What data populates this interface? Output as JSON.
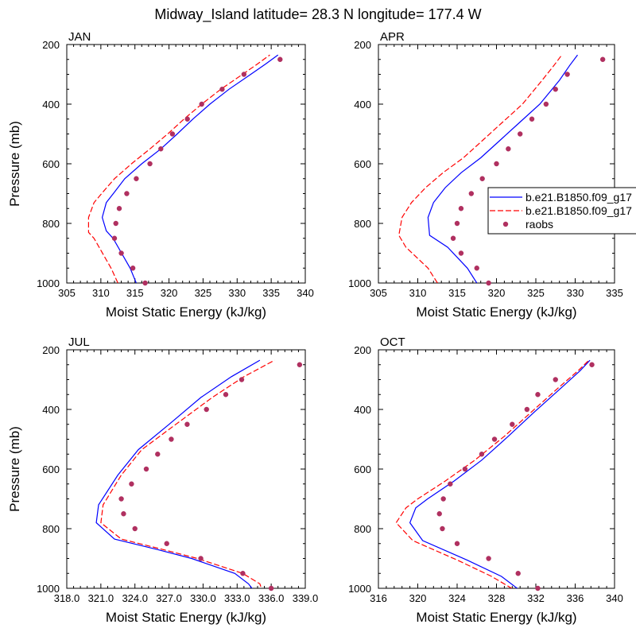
{
  "figure": {
    "title": "Midway_Island  latitude= 28.3 N longitude= 177.4 W"
  },
  "legend": {
    "placement": "right of APR panel",
    "entries": [
      {
        "label": "b.e21.B1850.f09_g17",
        "style": "solid",
        "color": "#0000ff"
      },
      {
        "label": "b.e21.B1850.f09_g17",
        "style": "dashed",
        "color": "#ff0000"
      },
      {
        "label": "raobs",
        "style": "marker",
        "color": "#b03060"
      }
    ]
  },
  "chart_data": [
    {
      "type": "line",
      "panel": "JAN",
      "title": "JAN",
      "xlabel": "Moist Static Energy (kJ/kg)",
      "ylabel": "Pressure (mb)",
      "xlim": [
        305,
        340
      ],
      "ylim": [
        1000,
        200
      ],
      "y_reversed": true,
      "xticks": [
        "305",
        "310",
        "315",
        "320",
        "325",
        "330",
        "335",
        "340"
      ],
      "yticks": [
        "200",
        "400",
        "600",
        "800",
        "1000"
      ],
      "series": [
        {
          "name": "b.e21.B1850.f09_g17",
          "style": "solid",
          "color": "#0000ff",
          "points": [
            [
              315.2,
              1000
            ],
            [
              314.3,
              950
            ],
            [
              311.8,
              850
            ],
            [
              310.8,
              825
            ],
            [
              310.2,
              780
            ],
            [
              310.8,
              730
            ],
            [
              312.0,
              695
            ],
            [
              313.5,
              650
            ],
            [
              316.0,
              600
            ],
            [
              318.8,
              550
            ],
            [
              321.2,
              500
            ],
            [
              323.5,
              450
            ],
            [
              326.0,
              400
            ],
            [
              328.8,
              350
            ],
            [
              332.0,
              300
            ],
            [
              334.2,
              265
            ],
            [
              336.0,
              235
            ]
          ]
        },
        {
          "name": "b.e21.B1850.f09_g17",
          "style": "dashed",
          "color": "#ff0000",
          "points": [
            [
              312.5,
              1000
            ],
            [
              311.5,
              950
            ],
            [
              309.0,
              850
            ],
            [
              308.2,
              830
            ],
            [
              308.2,
              780
            ],
            [
              309.0,
              730
            ],
            [
              310.3,
              695
            ],
            [
              312.0,
              650
            ],
            [
              314.5,
              600
            ],
            [
              317.2,
              550
            ],
            [
              319.8,
              500
            ],
            [
              322.2,
              450
            ],
            [
              324.8,
              400
            ],
            [
              327.6,
              350
            ],
            [
              330.8,
              300
            ],
            [
              333.0,
              265
            ],
            [
              334.8,
              235
            ]
          ]
        },
        {
          "name": "raobs",
          "style": "marker",
          "color": "#b03060",
          "points": [
            [
              316.5,
              1000
            ],
            [
              314.7,
              950
            ],
            [
              313.0,
              900
            ],
            [
              312.0,
              850
            ],
            [
              312.2,
              800
            ],
            [
              312.7,
              750
            ],
            [
              313.8,
              700
            ],
            [
              315.2,
              650
            ],
            [
              317.2,
              600
            ],
            [
              318.8,
              550
            ],
            [
              320.5,
              500
            ],
            [
              322.7,
              450
            ],
            [
              324.8,
              400
            ],
            [
              327.8,
              350
            ],
            [
              331.0,
              300
            ],
            [
              336.3,
              250
            ]
          ]
        }
      ]
    },
    {
      "type": "line",
      "panel": "APR",
      "title": "APR",
      "xlabel": "Moist Static Energy (kJ/kg)",
      "ylabel": "",
      "xlim": [
        305,
        335
      ],
      "ylim": [
        1000,
        200
      ],
      "y_reversed": true,
      "xticks": [
        "305",
        "310",
        "315",
        "320",
        "325",
        "330",
        "335"
      ],
      "yticks": [
        "200",
        "400",
        "600",
        "800",
        "1000"
      ],
      "series": [
        {
          "name": "b.e21.B1850.f09_g17",
          "style": "solid",
          "color": "#0000ff",
          "points": [
            [
              317.5,
              1000
            ],
            [
              316.3,
              950
            ],
            [
              313.8,
              880
            ],
            [
              311.5,
              840
            ],
            [
              311.3,
              780
            ],
            [
              312.0,
              730
            ],
            [
              313.5,
              680
            ],
            [
              315.5,
              630
            ],
            [
              318.0,
              580
            ],
            [
              320.5,
              520
            ],
            [
              323.0,
              460
            ],
            [
              325.5,
              400
            ],
            [
              328.0,
              320
            ],
            [
              329.3,
              270
            ],
            [
              330.3,
              235
            ]
          ]
        },
        {
          "name": "b.e21.B1850.f09_g17",
          "style": "dashed",
          "color": "#ff0000",
          "points": [
            [
              312.5,
              1000
            ],
            [
              311.3,
              950
            ],
            [
              308.5,
              880
            ],
            [
              307.6,
              840
            ],
            [
              308.0,
              780
            ],
            [
              309.2,
              730
            ],
            [
              311.0,
              680
            ],
            [
              313.2,
              630
            ],
            [
              315.8,
              580
            ],
            [
              318.3,
              520
            ],
            [
              320.8,
              460
            ],
            [
              323.3,
              400
            ],
            [
              325.8,
              320
            ],
            [
              327.3,
              270
            ],
            [
              328.3,
              235
            ]
          ]
        },
        {
          "name": "raobs",
          "style": "marker",
          "color": "#b03060",
          "points": [
            [
              319.0,
              1000
            ],
            [
              317.5,
              950
            ],
            [
              315.5,
              900
            ],
            [
              314.5,
              850
            ],
            [
              315.0,
              800
            ],
            [
              315.5,
              750
            ],
            [
              316.8,
              700
            ],
            [
              318.2,
              650
            ],
            [
              320.0,
              600
            ],
            [
              321.5,
              550
            ],
            [
              323.0,
              500
            ],
            [
              324.5,
              450
            ],
            [
              326.3,
              400
            ],
            [
              327.5,
              350
            ],
            [
              329.0,
              300
            ],
            [
              333.5,
              250
            ]
          ]
        }
      ]
    },
    {
      "type": "line",
      "panel": "JUL",
      "title": "JUL",
      "xlabel": "Moist Static Energy (kJ/kg)",
      "ylabel": "Pressure (mb)",
      "xlim": [
        318,
        339
      ],
      "ylim": [
        1000,
        200
      ],
      "y_reversed": true,
      "xticks": [
        "318.0",
        "321.0",
        "324.0",
        "327.0",
        "330.0",
        "333.0",
        "336.0",
        "339.0"
      ],
      "yticks": [
        "200",
        "400",
        "600",
        "800",
        "1000"
      ],
      "series": [
        {
          "name": "b.e21.B1850.f09_g17",
          "style": "solid",
          "color": "#0000ff",
          "points": [
            [
              334.7,
              1020
            ],
            [
              334.0,
              985
            ],
            [
              332.8,
              950
            ],
            [
              329.0,
              900
            ],
            [
              326.0,
              870
            ],
            [
              322.2,
              835
            ],
            [
              320.6,
              780
            ],
            [
              320.8,
              720
            ],
            [
              322.5,
              620
            ],
            [
              324.3,
              535
            ],
            [
              327.0,
              450
            ],
            [
              329.8,
              360
            ],
            [
              332.5,
              290
            ],
            [
              335.0,
              235
            ]
          ]
        },
        {
          "name": "b.e21.B1850.f09_g17",
          "style": "dashed",
          "color": "#ff0000",
          "points": [
            [
              335.3,
              1020
            ],
            [
              335.0,
              985
            ],
            [
              333.5,
              950
            ],
            [
              329.5,
              900
            ],
            [
              326.5,
              870
            ],
            [
              322.8,
              835
            ],
            [
              321.0,
              780
            ],
            [
              321.2,
              720
            ],
            [
              322.8,
              620
            ],
            [
              324.6,
              535
            ],
            [
              327.6,
              450
            ],
            [
              330.8,
              360
            ],
            [
              333.6,
              290
            ],
            [
              336.3,
              235
            ]
          ]
        },
        {
          "name": "raobs",
          "style": "marker",
          "color": "#b03060",
          "points": [
            [
              336.0,
              1000
            ],
            [
              333.5,
              950
            ],
            [
              329.8,
              900
            ],
            [
              326.8,
              850
            ],
            [
              324.0,
              800
            ],
            [
              323.0,
              750
            ],
            [
              322.8,
              700
            ],
            [
              323.7,
              650
            ],
            [
              325.0,
              600
            ],
            [
              326.0,
              550
            ],
            [
              327.2,
              500
            ],
            [
              328.6,
              450
            ],
            [
              330.3,
              400
            ],
            [
              332.0,
              350
            ],
            [
              333.4,
              300
            ],
            [
              338.5,
              250
            ]
          ]
        }
      ]
    },
    {
      "type": "line",
      "panel": "OCT",
      "title": "OCT",
      "xlabel": "Moist Static Energy (kJ/kg)",
      "ylabel": "",
      "xlim": [
        316,
        340
      ],
      "ylim": [
        1000,
        200
      ],
      "y_reversed": true,
      "xticks": [
        "316",
        "320",
        "324",
        "328",
        "332",
        "336",
        "340"
      ],
      "yticks": [
        "200",
        "400",
        "600",
        "800",
        "1000"
      ],
      "series": [
        {
          "name": "b.e21.B1850.f09_g17",
          "style": "solid",
          "color": "#0000ff",
          "points": [
            [
              330.7,
              1015
            ],
            [
              328.5,
              960
            ],
            [
              325.0,
              905
            ],
            [
              320.5,
              840
            ],
            [
              319.2,
              780
            ],
            [
              319.8,
              730
            ],
            [
              321.0,
              700
            ],
            [
              323.7,
              640
            ],
            [
              326.5,
              570
            ],
            [
              329.2,
              490
            ],
            [
              331.8,
              410
            ],
            [
              334.5,
              330
            ],
            [
              336.5,
              270
            ],
            [
              337.5,
              235
            ]
          ]
        },
        {
          "name": "b.e21.B1850.f09_g17",
          "style": "dashed",
          "color": "#ff0000",
          "points": [
            [
              330.3,
              1015
            ],
            [
              327.5,
              960
            ],
            [
              324.0,
              905
            ],
            [
              319.5,
              840
            ],
            [
              317.8,
              780
            ],
            [
              318.8,
              730
            ],
            [
              320.0,
              700
            ],
            [
              322.8,
              640
            ],
            [
              325.8,
              570
            ],
            [
              328.8,
              490
            ],
            [
              331.5,
              410
            ],
            [
              334.2,
              330
            ],
            [
              336.3,
              270
            ],
            [
              337.4,
              235
            ]
          ]
        },
        {
          "name": "raobs",
          "style": "marker",
          "color": "#b03060",
          "points": [
            [
              332.2,
              1000
            ],
            [
              330.2,
              950
            ],
            [
              327.2,
              900
            ],
            [
              324.0,
              850
            ],
            [
              322.5,
              800
            ],
            [
              322.2,
              750
            ],
            [
              322.6,
              700
            ],
            [
              323.3,
              650
            ],
            [
              324.8,
              600
            ],
            [
              326.5,
              550
            ],
            [
              327.8,
              500
            ],
            [
              329.6,
              450
            ],
            [
              331.1,
              400
            ],
            [
              332.2,
              350
            ],
            [
              334.0,
              300
            ],
            [
              337.7,
              250
            ]
          ]
        }
      ]
    }
  ]
}
